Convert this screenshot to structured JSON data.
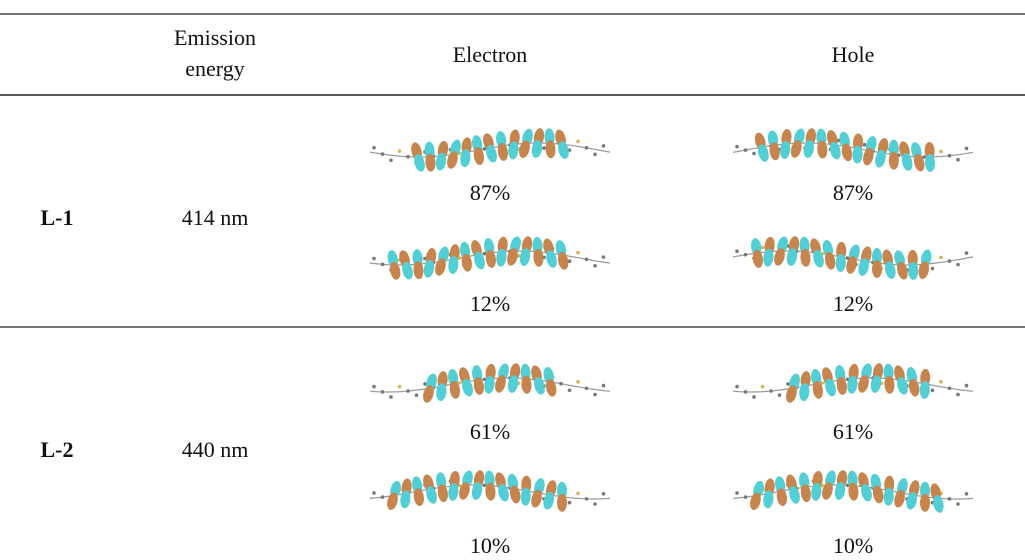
{
  "table": {
    "header": [
      "Emission energy",
      "Electron",
      "Hole"
    ],
    "rows": [
      {
        "label": "L-1",
        "emission": "414 nm",
        "contributions": [
          {
            "electron": "87%",
            "hole": "87%"
          },
          {
            "electron": "12%",
            "hole": "12%"
          }
        ]
      },
      {
        "label": "L-2",
        "emission": "440 nm",
        "contributions": [
          {
            "electron": "61%",
            "hole": "61%"
          },
          {
            "electron": "10%",
            "hole": "10%"
          }
        ]
      }
    ]
  }
}
